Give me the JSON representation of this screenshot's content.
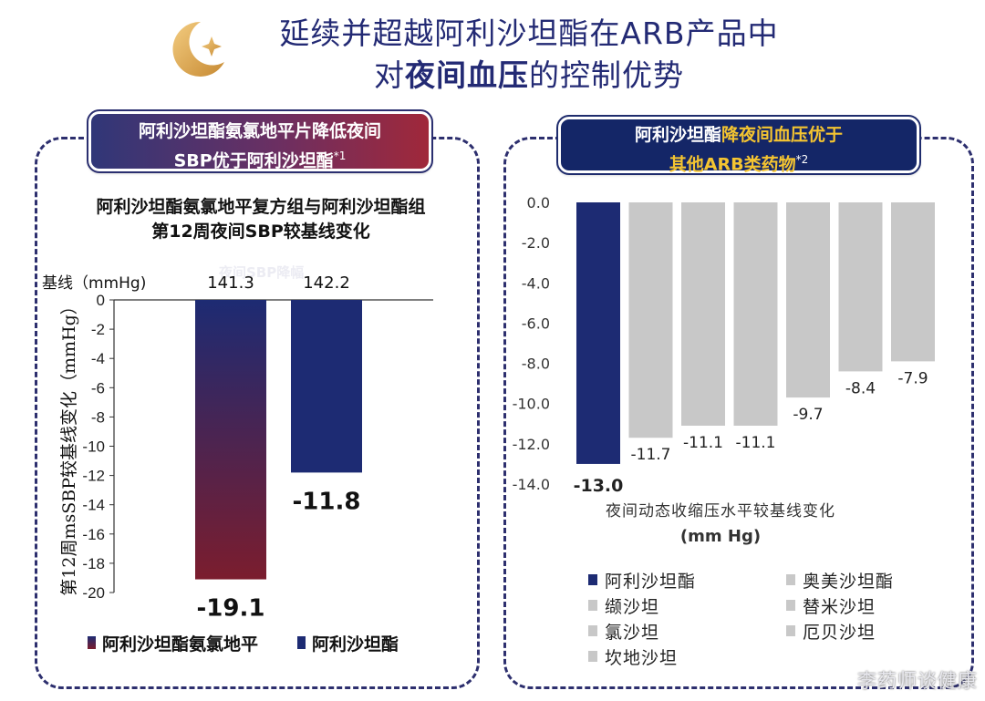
{
  "header": {
    "title_line1": "延续并超越阿利沙坦酯在ARB产品中",
    "title_line2_pre": "对",
    "title_line2_bold": "夜间血压",
    "title_line2_post": "的控制优势"
  },
  "left_tag": {
    "line1": "阿利沙坦酯氨氯地平片降低夜间",
    "line2": "SBP优于阿利沙坦酯",
    "sup": "*1"
  },
  "right_tag": {
    "line1_a": "阿利沙坦酯",
    "line1_b": "降夜间血压优于",
    "line2": "其他ARB类药物",
    "sup": "*2"
  },
  "watermark": "李药师谈健康",
  "colors": {
    "navy": "#1d2b73",
    "maroon": "#7b1d2e",
    "grey": "#c8c8c8",
    "title": "#232a74"
  },
  "chart_data": [
    {
      "type": "bar",
      "title": "阿利沙坦酯氨氯地平复方组与阿利沙坦酯组\n第12周夜间SBP较基线变化",
      "ylabel": "第12周msSBP较基线变化（mmHg）",
      "baseline_label": "基线（mmHg)",
      "faded_label": "夜间SBP降幅",
      "ylim": [
        -20,
        0
      ],
      "yticks": [
        0,
        -2,
        -4,
        -6,
        -8,
        -10,
        -12,
        -14,
        -16,
        -18,
        -20
      ],
      "categories": [
        "阿利沙坦酯氨氯地平",
        "阿利沙坦酯"
      ],
      "baselines": [
        "141.3",
        "142.2"
      ],
      "values": [
        -19.1,
        -11.8
      ],
      "value_labels": [
        "-19.1",
        "-11.8"
      ],
      "colors": [
        "gradient",
        "#1d2b73"
      ],
      "legend": [
        "阿利沙坦酯氨氯地平",
        "阿利沙坦酯"
      ],
      "legend_position": "bottom"
    },
    {
      "type": "bar",
      "xlabel": "夜间动态收缩压水平较基线变化",
      "xunit": "(mm Hg)",
      "ylim": [
        -14,
        0
      ],
      "yticks": [
        "0.0",
        "-2.0",
        "-4.0",
        "-6.0",
        "-8.0",
        "-10.0",
        "-12.0",
        "-14.0"
      ],
      "categories": [
        "阿利沙坦酯",
        "缬沙坦",
        "氯沙坦",
        "坎地沙坦",
        "奥美沙坦酯",
        "替米沙坦",
        "厄贝沙坦"
      ],
      "values": [
        -13.0,
        -11.7,
        -11.1,
        -11.1,
        -9.7,
        -8.4,
        -7.9
      ],
      "value_labels": [
        "-13.0",
        "-11.7",
        "-11.1",
        "-11.1",
        "-9.7",
        "-8.4",
        "-7.9"
      ],
      "colors": [
        "#1d2b73",
        "#c8c8c8",
        "#c8c8c8",
        "#c8c8c8",
        "#c8c8c8",
        "#c8c8c8",
        "#c8c8c8"
      ],
      "legend": [
        "阿利沙坦酯",
        "缬沙坦",
        "氯沙坦",
        "坎地沙坦",
        "奥美沙坦酯",
        "替米沙坦",
        "厄贝沙坦"
      ],
      "legend_position": "bottom"
    }
  ]
}
